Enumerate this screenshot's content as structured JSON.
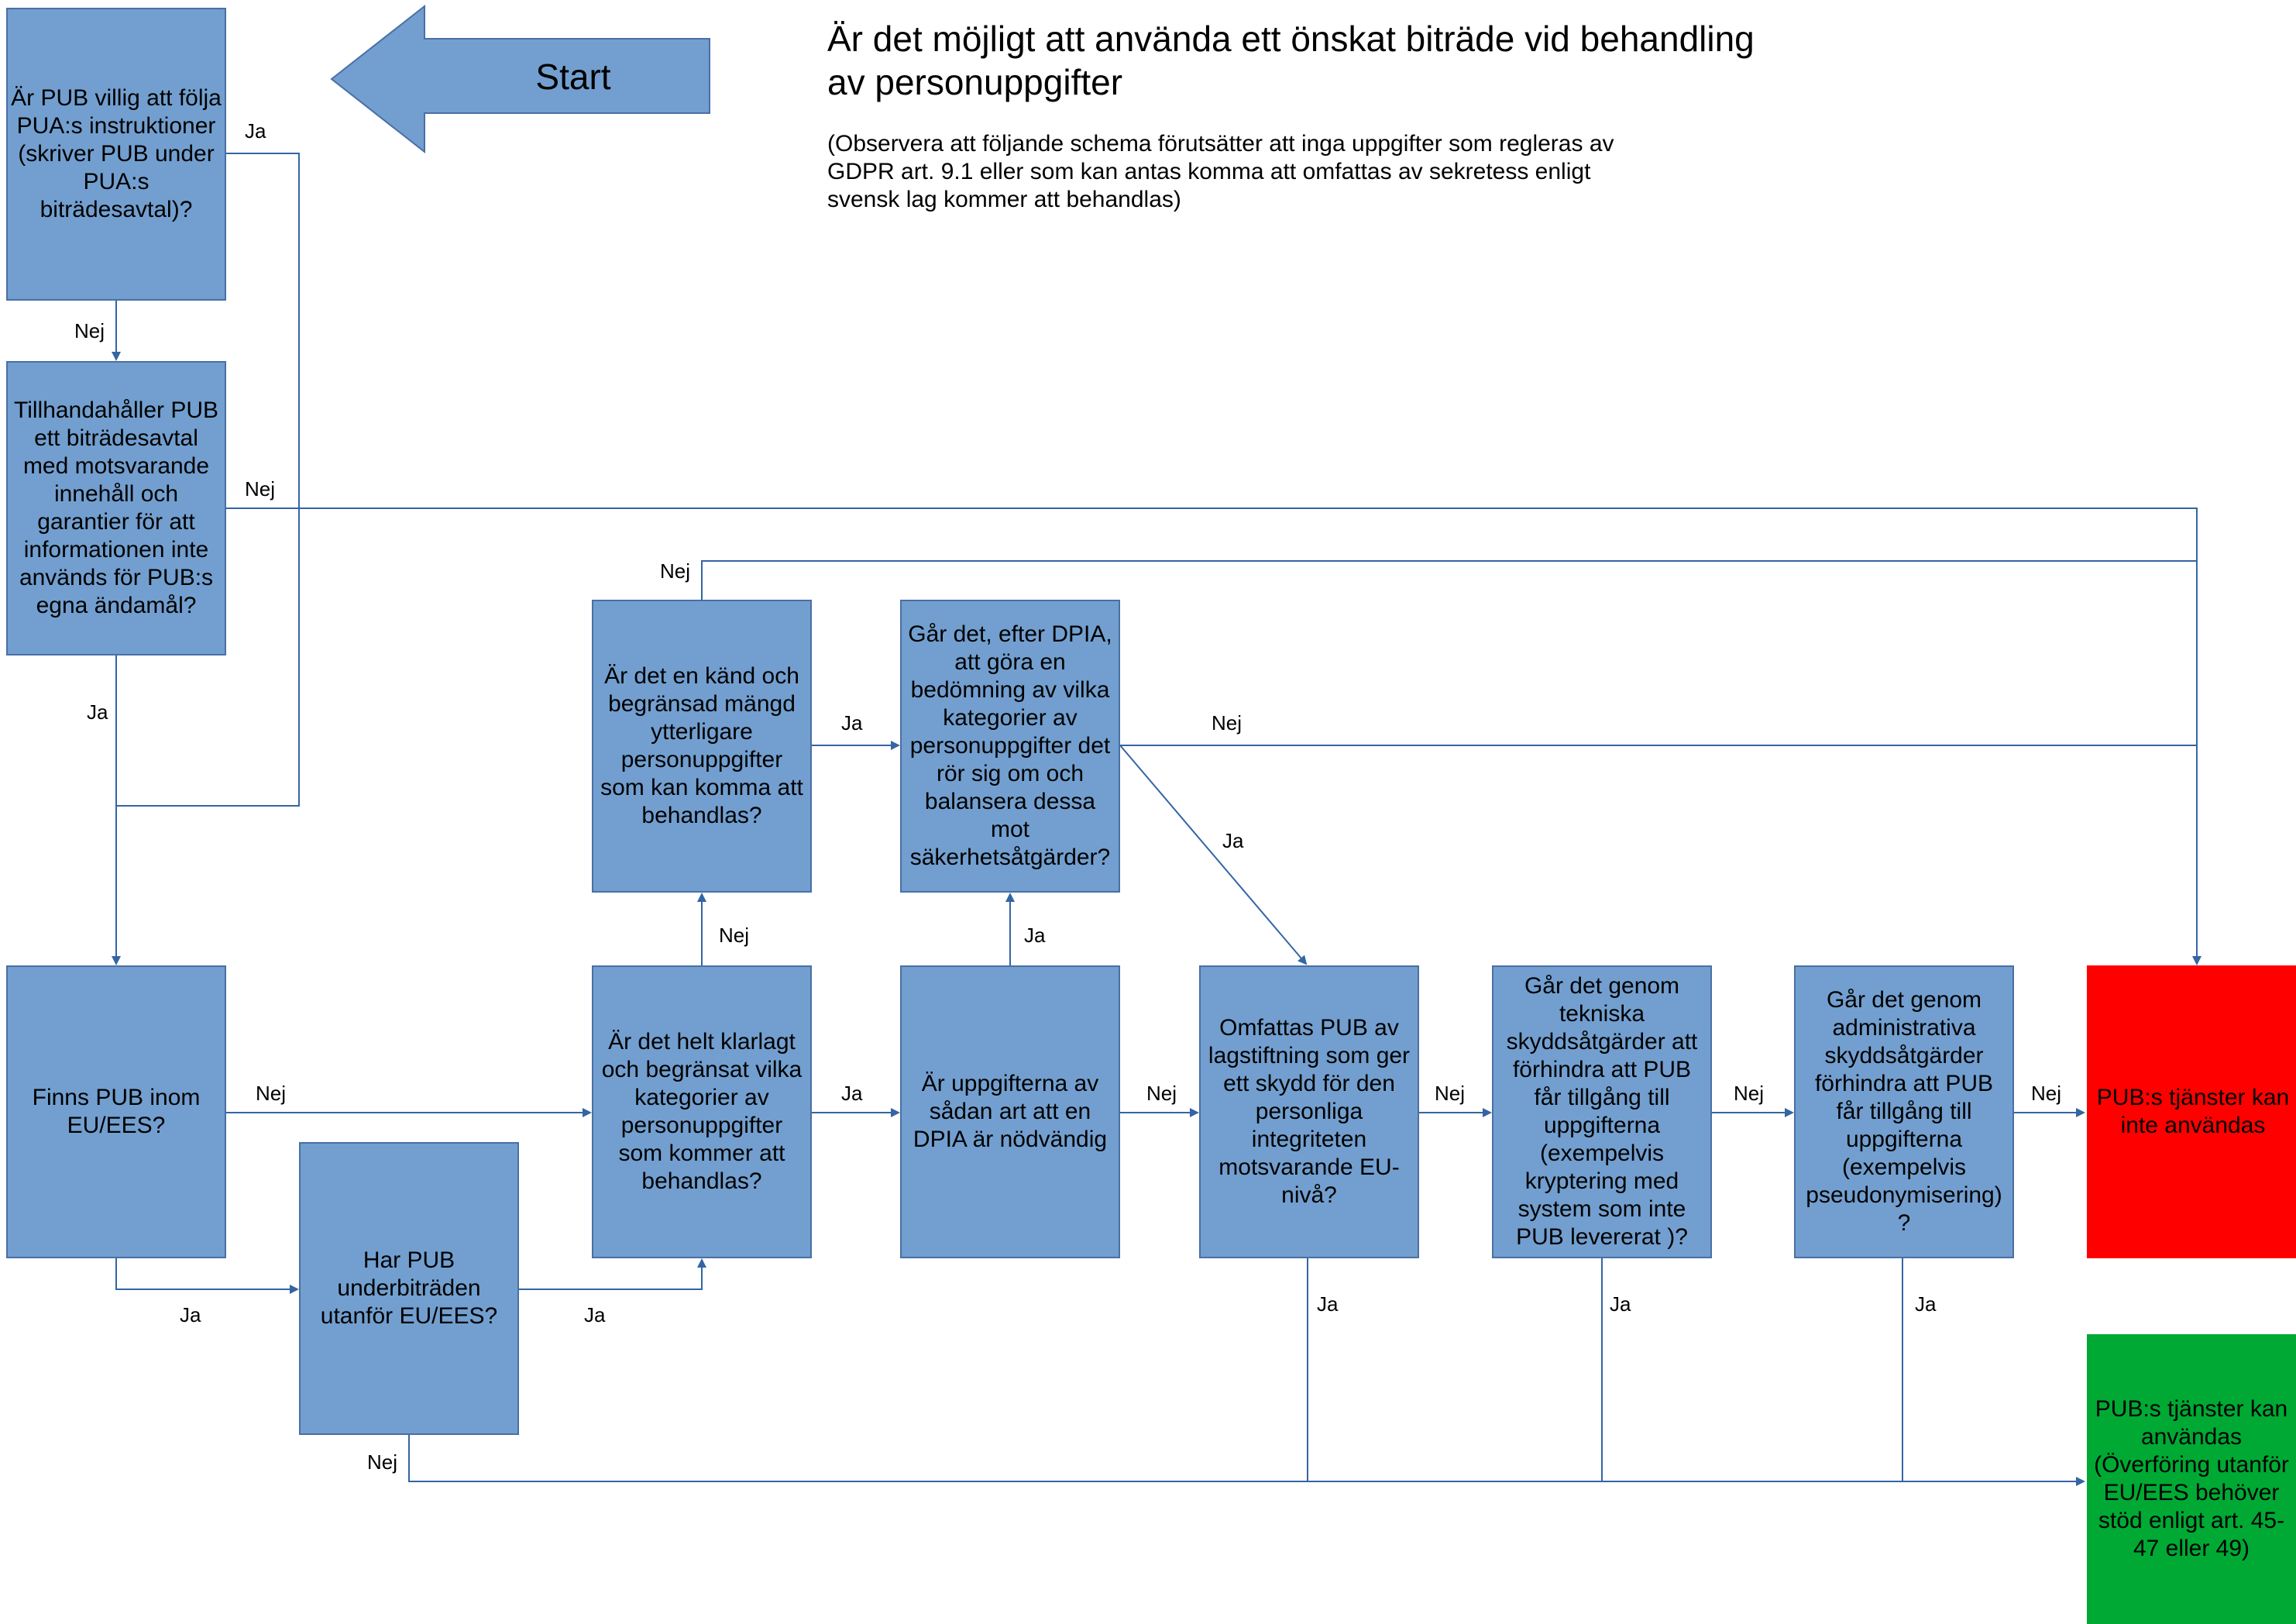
{
  "title": "Är det möjligt att använda ett önskat biträde vid behandling av personuppgifter",
  "note": "(Observera att följande schema förutsätter att inga uppgifter som regleras av GDPR art. 9.1 eller som kan antas komma att omfattas av sekretess enligt svensk lag kommer att behandlas)",
  "start_label": "Start",
  "colors": {
    "box": "#729fcf",
    "line": "#3465a4",
    "stop": "#ff0000",
    "go": "#00a933"
  },
  "boxes": {
    "q1": "Är PUB villig att följa PUA:s instruktioner (skriver PUB under PUA:s biträdesavtal)?",
    "q2": "Tillhandahåller PUB ett biträdesavtal med motsvarande innehåll och garantier för att informationen inte används för PUB:s egna ändamål?",
    "q3": "Finns PUB inom EU/EES?",
    "q4": "Har PUB underbiträden utanför EU/EES?",
    "q5": "Är det helt klarlagt och begränsat vilka kategorier av personuppgifter som kommer att behandlas?",
    "q6": "Är det en känd och begränsad mängd ytterligare personuppgifter som kan komma att behandlas?",
    "q7": "Går det, efter DPIA, att göra en bedömning av vilka kategorier av personuppgifter det rör sig om och balansera dessa mot säkerhetsåtgärder?",
    "q8": "Är uppgifterna av sådan art att en DPIA är nödvändig",
    "q9": "Omfattas PUB av lagstiftning som ger ett skydd för den personliga integriteten motsvarande EU-nivå?",
    "q10": "Går det genom tekniska skyddsåtgärder att förhindra att PUB får tillgång till uppgifterna (exempelvis kryptering med system som inte PUB levererat )?",
    "q11": "Går det genom administrativa skyddsåtgärder förhindra att PUB får tillgång till uppgifterna (exempelvis pseudonymisering) ?",
    "stop": "PUB:s tjänster kan inte användas",
    "go": "PUB:s tjänster kan användas (Överföring utanför EU/EES behöver stöd enligt art. 45-47 eller 49)"
  },
  "labels": {
    "yes": "Ja",
    "no": "Nej"
  }
}
